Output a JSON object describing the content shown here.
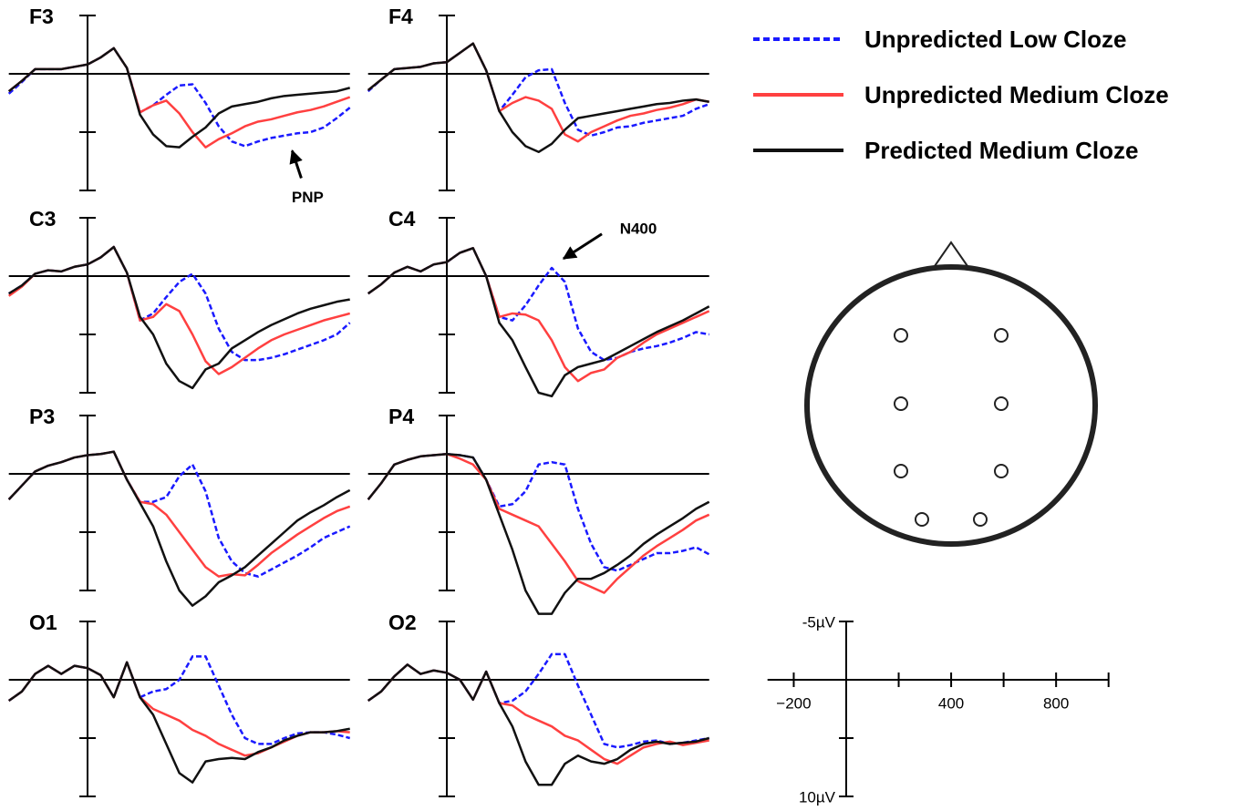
{
  "chart_data": {
    "type": "line",
    "x": [
      -300,
      -250,
      -200,
      -150,
      -100,
      -50,
      0,
      50,
      100,
      150,
      200,
      250,
      300,
      350,
      400,
      450,
      500,
      550,
      600,
      650,
      700,
      750,
      800,
      850,
      900,
      950,
      1000
    ],
    "xlim": [
      -300,
      1000
    ],
    "ylim": [
      -5,
      10
    ],
    "y_inverted": true,
    "yticks": [
      -5,
      5,
      10
    ],
    "series": [
      {
        "name": "Unpredicted Low Cloze",
        "color": "#1a1aff",
        "dashed": true
      },
      {
        "name": "Unpredicted Medium Cloze",
        "color": "#ff4040",
        "dashed": false
      },
      {
        "name": "Predicted Medium Cloze",
        "color": "#111111",
        "dashed": false
      }
    ],
    "panels": [
      {
        "title": "F3",
        "annotations": [
          {
            "text": "PNP",
            "x": 780,
            "y": 6.6
          }
        ],
        "series": [
          {
            "values": [
              1.7,
              0.7,
              -0.4,
              -0.4,
              -0.4,
              -0.6,
              -0.8,
              -1.4,
              -2.2,
              -0.5,
              3.3,
              2.7,
              1.8,
              1.0,
              0.9,
              2.5,
              4.5,
              5.8,
              6.2,
              5.8,
              5.5,
              5.3,
              5.1,
              5.0,
              4.6,
              3.8,
              2.9
            ]
          },
          {
            "values": [
              1.5,
              0.6,
              -0.4,
              -0.4,
              -0.4,
              -0.6,
              -0.8,
              -1.4,
              -2.2,
              -0.5,
              3.3,
              2.7,
              2.3,
              3.4,
              5.0,
              6.3,
              5.6,
              5.1,
              4.5,
              4.1,
              3.9,
              3.6,
              3.3,
              3.1,
              2.8,
              2.4,
              2.0
            ]
          },
          {
            "values": [
              1.5,
              0.6,
              -0.4,
              -0.4,
              -0.4,
              -0.6,
              -0.8,
              -1.4,
              -2.2,
              -0.5,
              3.5,
              5.2,
              6.2,
              6.3,
              5.4,
              4.6,
              3.4,
              2.8,
              2.6,
              2.4,
              2.1,
              1.9,
              1.8,
              1.7,
              1.6,
              1.5,
              1.2
            ]
          }
        ]
      },
      {
        "title": "F4",
        "annotations": [],
        "series": [
          {
            "values": [
              1.5,
              0.5,
              -0.4,
              -0.5,
              -0.6,
              -0.9,
              -1.0,
              -1.8,
              -2.6,
              -0.3,
              3.2,
              1.8,
              0.3,
              -0.3,
              -0.4,
              2.5,
              4.8,
              5.3,
              5.0,
              4.6,
              4.5,
              4.2,
              4.0,
              3.8,
              3.6,
              3.0,
              2.6
            ]
          },
          {
            "values": [
              1.4,
              0.5,
              -0.4,
              -0.5,
              -0.6,
              -0.9,
              -1.0,
              -1.8,
              -2.6,
              -0.3,
              3.2,
              2.5,
              2.0,
              2.3,
              3.0,
              5.2,
              5.8,
              5.0,
              4.5,
              4.0,
              3.6,
              3.4,
              3.1,
              2.9,
              2.6,
              2.2,
              2.4
            ]
          },
          {
            "values": [
              1.4,
              0.5,
              -0.4,
              -0.5,
              -0.6,
              -0.9,
              -1.0,
              -1.8,
              -2.6,
              -0.3,
              3.2,
              5.0,
              6.2,
              6.7,
              6.0,
              4.8,
              3.8,
              3.6,
              3.4,
              3.2,
              3.0,
              2.8,
              2.6,
              2.5,
              2.3,
              2.2,
              2.4
            ]
          }
        ]
      },
      {
        "title": "C3",
        "annotations": [],
        "series": [
          {
            "values": [
              1.5,
              0.8,
              -0.2,
              -0.5,
              -0.4,
              -0.8,
              -1.0,
              -1.6,
              -2.5,
              -0.3,
              3.8,
              3.2,
              1.8,
              0.5,
              -0.2,
              1.5,
              4.5,
              6.5,
              7.2,
              7.2,
              7.0,
              6.7,
              6.3,
              5.9,
              5.5,
              5.0,
              4.0
            ]
          },
          {
            "values": [
              1.7,
              0.9,
              -0.2,
              -0.5,
              -0.4,
              -0.8,
              -1.0,
              -1.6,
              -2.5,
              -0.3,
              3.8,
              3.5,
              2.4,
              3.0,
              5.0,
              7.3,
              8.4,
              7.8,
              7.0,
              6.2,
              5.5,
              5.0,
              4.6,
              4.2,
              3.8,
              3.5,
              3.2
            ]
          },
          {
            "values": [
              1.5,
              0.8,
              -0.2,
              -0.5,
              -0.4,
              -0.8,
              -1.0,
              -1.6,
              -2.5,
              -0.3,
              3.5,
              5.0,
              7.5,
              9.0,
              9.6,
              8.0,
              7.5,
              6.2,
              5.5,
              4.8,
              4.2,
              3.7,
              3.2,
              2.8,
              2.5,
              2.2,
              2.0
            ]
          }
        ]
      },
      {
        "title": "C4",
        "annotations": [
          {
            "text": "N400",
            "x": 445,
            "y": -1.5
          }
        ],
        "series": [
          {
            "values": [
              1.5,
              0.7,
              -0.3,
              -0.8,
              -0.4,
              -1.0,
              -1.2,
              -2.0,
              -2.4,
              0.0,
              3.5,
              3.8,
              2.5,
              0.8,
              -0.7,
              0.5,
              4.5,
              6.5,
              7.2,
              7.0,
              6.5,
              6.2,
              6.0,
              5.7,
              5.3,
              4.8,
              5.0
            ]
          },
          {
            "values": [
              1.5,
              0.7,
              -0.3,
              -0.8,
              -0.4,
              -1.0,
              -1.2,
              -2.0,
              -2.4,
              0.0,
              3.5,
              3.2,
              3.3,
              3.8,
              5.5,
              7.8,
              9.0,
              8.3,
              8.0,
              7.0,
              6.5,
              5.7,
              5.0,
              4.5,
              4.0,
              3.5,
              3.0
            ]
          },
          {
            "values": [
              1.5,
              0.7,
              -0.3,
              -0.8,
              -0.4,
              -1.0,
              -1.2,
              -2.0,
              -2.4,
              0.0,
              4.0,
              5.5,
              7.8,
              10.0,
              10.3,
              8.5,
              7.8,
              7.5,
              7.2,
              6.6,
              6.0,
              5.4,
              4.8,
              4.3,
              3.8,
              3.2,
              2.6
            ]
          }
        ]
      },
      {
        "title": "P3",
        "annotations": [],
        "series": [
          {
            "values": [
              2.2,
              1.0,
              -0.2,
              -0.7,
              -1.0,
              -1.4,
              -1.6,
              -1.7,
              -1.9,
              0.5,
              2.4,
              2.4,
              2.0,
              0.2,
              -0.8,
              1.5,
              5.5,
              7.5,
              8.5,
              8.8,
              8.2,
              7.6,
              7.0,
              6.3,
              5.5,
              5.0,
              4.5
            ]
          },
          {
            "values": [
              2.2,
              1.0,
              -0.2,
              -0.7,
              -1.0,
              -1.4,
              -1.6,
              -1.7,
              -1.9,
              0.5,
              2.4,
              2.6,
              3.5,
              5.0,
              6.5,
              8.0,
              8.8,
              8.6,
              8.7,
              7.8,
              6.8,
              6.0,
              5.2,
              4.5,
              3.8,
              3.2,
              2.8
            ]
          },
          {
            "values": [
              2.2,
              1.0,
              -0.2,
              -0.7,
              -1.0,
              -1.4,
              -1.6,
              -1.7,
              -1.9,
              0.5,
              2.5,
              4.5,
              7.5,
              10.0,
              11.3,
              10.5,
              9.3,
              8.7,
              8.0,
              7.0,
              6.0,
              5.0,
              4.0,
              3.3,
              2.7,
              2.0,
              1.4
            ]
          }
        ]
      },
      {
        "title": "P4",
        "annotations": [],
        "series": [
          {
            "values": [
              2.2,
              0.8,
              -0.8,
              -1.2,
              -1.5,
              -1.6,
              -1.7,
              -1.6,
              -1.4,
              0.5,
              2.8,
              2.6,
              1.5,
              -0.8,
              -1.0,
              -0.8,
              3.0,
              6.0,
              8.0,
              8.3,
              7.8,
              7.3,
              6.8,
              6.8,
              6.6,
              6.3,
              6.9
            ]
          },
          {
            "values": [
              2.2,
              0.8,
              -0.8,
              -1.2,
              -1.5,
              -1.6,
              -1.7,
              -1.3,
              -0.8,
              0.5,
              3.0,
              3.5,
              4.0,
              4.5,
              6.0,
              7.5,
              9.2,
              9.7,
              10.2,
              9.0,
              8.0,
              7.0,
              6.2,
              5.5,
              4.8,
              4.0,
              3.5
            ]
          },
          {
            "values": [
              2.2,
              0.8,
              -0.8,
              -1.2,
              -1.5,
              -1.6,
              -1.7,
              -1.6,
              -1.4,
              0.5,
              3.5,
              6.5,
              10.0,
              12.0,
              12.0,
              10.2,
              9.0,
              9.0,
              8.5,
              7.8,
              7.0,
              6.0,
              5.2,
              4.5,
              3.8,
              3.0,
              2.4
            ]
          }
        ]
      },
      {
        "title": "O1",
        "annotations": [],
        "series": [
          {
            "values": [
              1.8,
              1.0,
              -0.5,
              -1.2,
              -0.5,
              -1.2,
              -1.0,
              -0.4,
              1.5,
              -1.5,
              1.5,
              1.0,
              0.8,
              0.0,
              -2.0,
              -2.0,
              0.5,
              3.0,
              5.0,
              5.5,
              5.5,
              5.0,
              4.6,
              4.5,
              4.5,
              4.7,
              5.0
            ]
          },
          {
            "values": [
              1.8,
              1.0,
              -0.5,
              -1.2,
              -0.5,
              -1.2,
              -1.0,
              -0.4,
              1.5,
              -1.5,
              1.5,
              2.5,
              3.0,
              3.5,
              4.3,
              4.8,
              5.5,
              6.0,
              6.5,
              6.3,
              5.8,
              5.3,
              4.8,
              4.5,
              4.5,
              4.4,
              4.5
            ]
          },
          {
            "values": [
              1.8,
              1.0,
              -0.5,
              -1.2,
              -0.5,
              -1.2,
              -1.0,
              -0.4,
              1.5,
              -1.5,
              1.5,
              3.0,
              5.5,
              8.0,
              8.8,
              7.0,
              6.8,
              6.7,
              6.8,
              6.2,
              5.8,
              5.2,
              4.8,
              4.5,
              4.5,
              4.4,
              4.2
            ]
          }
        ]
      },
      {
        "title": "O2",
        "annotations": [],
        "series": [
          {
            "values": [
              1.8,
              1.0,
              -0.3,
              -1.3,
              -0.5,
              -0.8,
              -0.6,
              0.0,
              1.7,
              -0.7,
              2.0,
              1.8,
              1.0,
              -0.5,
              -2.2,
              -2.2,
              0.5,
              3.0,
              5.5,
              5.8,
              5.6,
              5.3,
              5.2,
              5.5,
              5.4,
              5.2,
              5.0
            ]
          },
          {
            "values": [
              1.8,
              1.0,
              -0.3,
              -1.3,
              -0.5,
              -0.8,
              -0.6,
              0.0,
              1.7,
              -0.7,
              2.0,
              2.2,
              3.0,
              3.5,
              4.0,
              4.8,
              5.2,
              6.0,
              6.8,
              7.2,
              6.5,
              5.8,
              5.5,
              5.3,
              5.6,
              5.4,
              5.2
            ]
          },
          {
            "values": [
              1.8,
              1.0,
              -0.3,
              -1.3,
              -0.5,
              -0.8,
              -0.6,
              0.0,
              1.7,
              -0.7,
              2.0,
              4.0,
              7.0,
              9.0,
              9.0,
              7.2,
              6.5,
              7.0,
              7.2,
              6.8,
              6.0,
              5.5,
              5.3,
              5.5,
              5.4,
              5.3,
              5.0
            ]
          }
        ]
      }
    ]
  },
  "scale_bar": {
    "xlim": [
      -300,
      1000
    ],
    "ylim": [
      -5,
      10
    ],
    "xticks": [
      {
        "value": -200,
        "label": "−200"
      },
      400,
      800
    ],
    "xminorticks": [
      200,
      600,
      1000
    ],
    "yticks": [
      {
        "value": -5,
        "label": "-5µV"
      },
      {
        "value": 10,
        "label": "10µV"
      }
    ],
    "yminorticks": [
      5
    ]
  }
}
